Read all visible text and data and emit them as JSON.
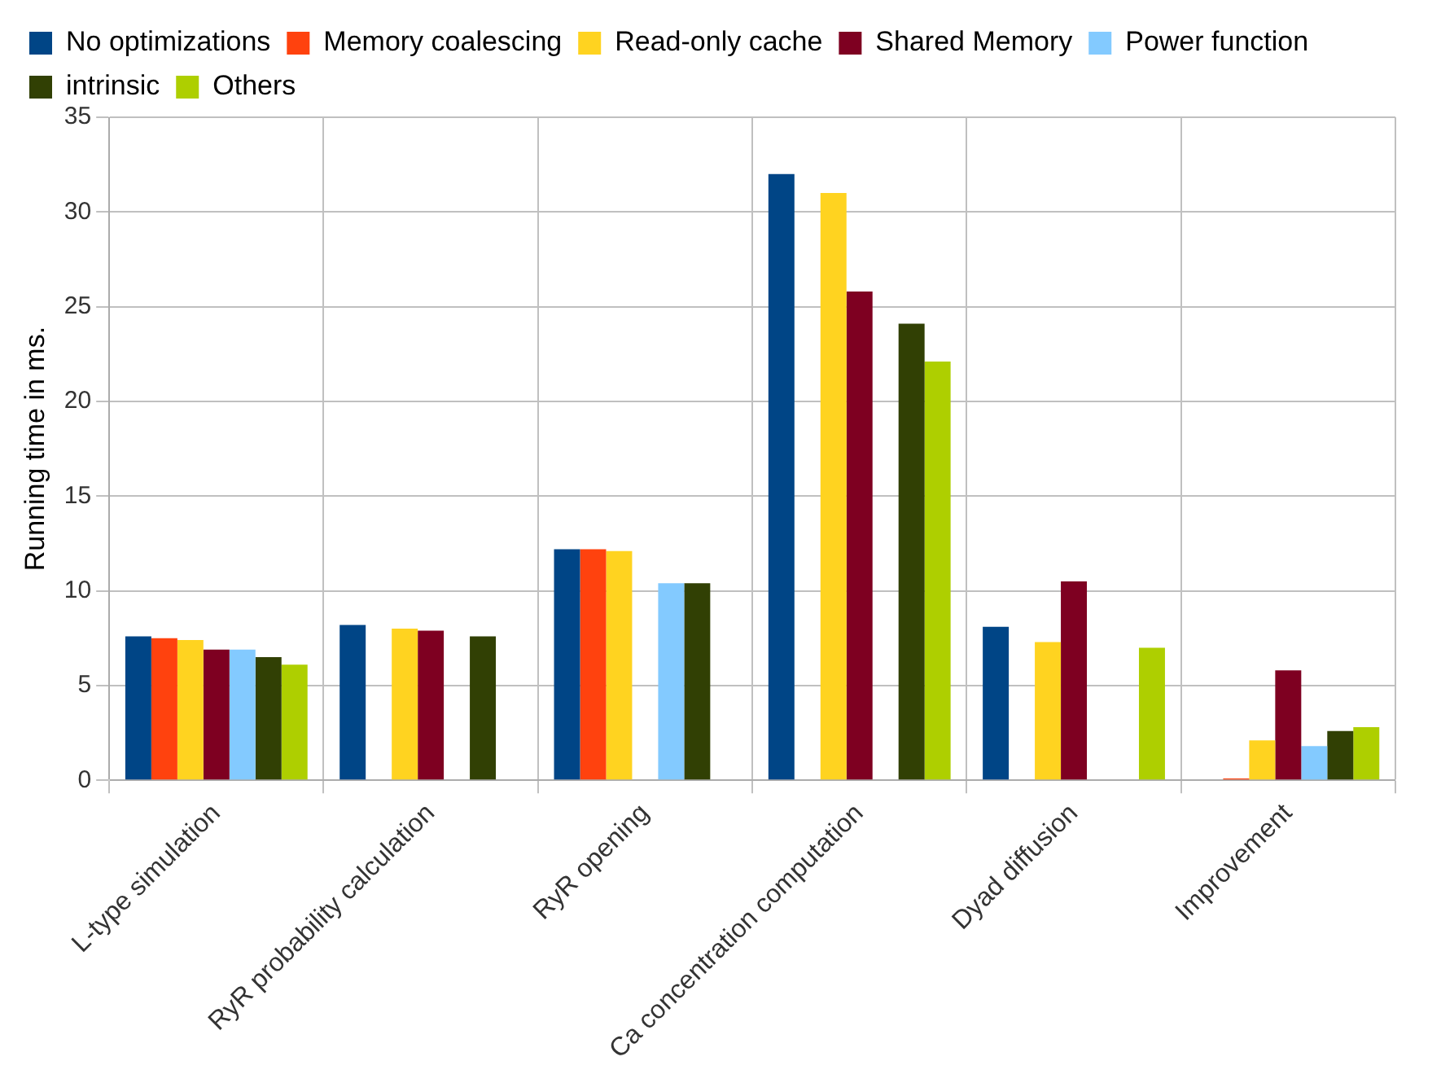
{
  "chart_data": {
    "type": "bar",
    "ylabel": "Running time in ms.",
    "categories": [
      "L-type simulation",
      "RyR probability calculation",
      "RyR opening",
      "Ca concentration computation",
      "Dyad diffusion",
      "Improvement"
    ],
    "series": [
      {
        "name": "No optimizations",
        "color": "#004586",
        "values": [
          7.6,
          8.2,
          12.2,
          32.0,
          8.1,
          null
        ]
      },
      {
        "name": "Memory coalescing",
        "color": "#ff420e",
        "values": [
          7.5,
          null,
          12.2,
          null,
          null,
          0.1
        ]
      },
      {
        "name": "Read-only cache",
        "color": "#ffd320",
        "values": [
          7.4,
          8.0,
          12.1,
          31.0,
          7.3,
          2.1
        ]
      },
      {
        "name": "Shared Memory",
        "color": "#7e0021",
        "values": [
          6.9,
          7.9,
          null,
          25.8,
          10.5,
          5.8
        ]
      },
      {
        "name": "Power function",
        "color": "#83caff",
        "values": [
          6.9,
          null,
          10.4,
          null,
          null,
          1.8
        ]
      },
      {
        "name": "intrinsic",
        "color": "#314004",
        "values": [
          6.5,
          7.6,
          10.4,
          24.1,
          null,
          2.6
        ]
      },
      {
        "name": "Others",
        "color": "#aecf00",
        "values": [
          6.1,
          null,
          null,
          22.1,
          7.0,
          2.8
        ]
      }
    ],
    "ylim": [
      0,
      35
    ],
    "yticks": [
      0,
      5,
      10,
      15,
      20,
      25,
      30,
      35
    ],
    "grid": true,
    "legend": "top"
  }
}
